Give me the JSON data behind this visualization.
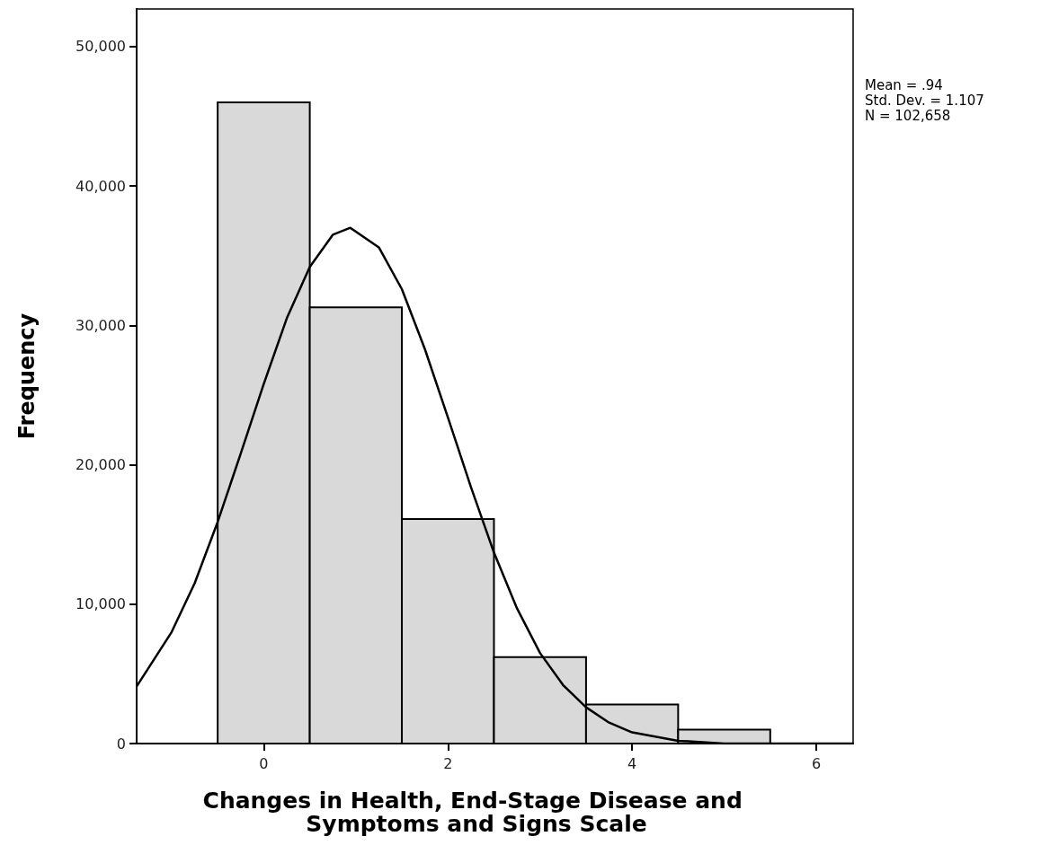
{
  "chart_data": {
    "type": "histogram",
    "xlabel": "Changes in Health, End-Stage Disease and Symptoms and Signs Scale",
    "ylabel": "Frequency",
    "bins": [
      -0.5,
      0.5,
      1.5,
      2.5,
      3.5,
      4.5,
      5.5
    ],
    "values": [
      46000,
      31300,
      16100,
      6200,
      2800,
      1000
    ],
    "color": "#d9d9d9",
    "series": [
      {
        "type": "line",
        "color": "#000000",
        "x": [
          -1.38,
          -1,
          -0.75,
          -0.5,
          -0.25,
          0,
          0.25,
          0.5,
          0.75,
          0.94,
          1.25,
          1.5,
          1.75,
          2,
          2.25,
          2.5,
          2.75,
          3,
          3.25,
          3.5,
          3.75,
          4,
          4.5,
          5,
          5.5,
          6,
          6.4
        ],
        "values": [
          4100,
          8000,
          11500,
          15900,
          20800,
          25800,
          30500,
          34200,
          36500,
          37000,
          35600,
          32600,
          28300,
          23400,
          18400,
          13700,
          9700,
          6500,
          4200,
          2600,
          1500,
          800,
          200,
          0,
          0,
          0,
          0
        ]
      }
    ],
    "xlim": [
      -1.38,
      6.4
    ],
    "xticks": [
      0,
      2,
      4,
      6
    ],
    "ylim": [
      0,
      52700
    ],
    "yticks": [
      0,
      {
        "value": 10000,
        "label": "10,000"
      },
      {
        "value": 20000,
        "label": "20,000"
      },
      {
        "value": 30000,
        "label": "30,000"
      },
      {
        "value": 40000,
        "label": "40,000"
      },
      {
        "value": 50000,
        "label": "50,000"
      }
    ],
    "grid": false,
    "marker": "none",
    "line_style": "solid",
    "annotations": [
      "Mean = .94",
      "Std. Dev. = 1.107",
      "N = 102,658"
    ]
  }
}
